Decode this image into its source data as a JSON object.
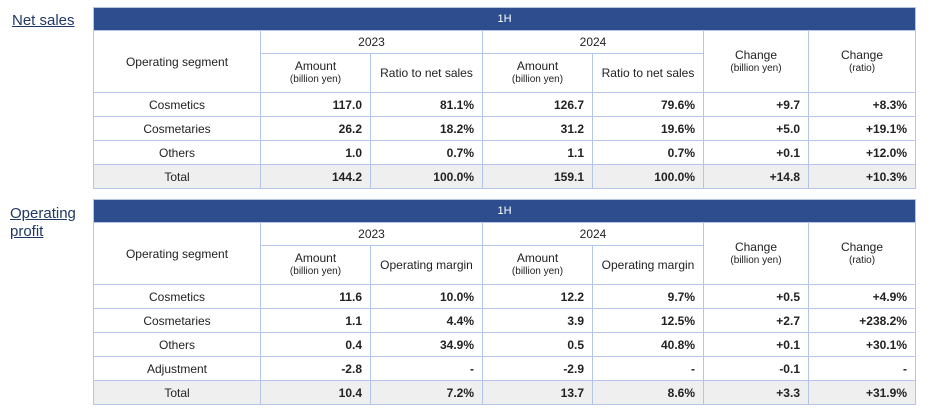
{
  "sections": [
    {
      "label": "Net sales",
      "period": "1H",
      "segment_header": "Operating segment",
      "years": [
        "2023",
        "2024"
      ],
      "subheaders": [
        {
          "text": "Amount",
          "unit": "(billion yen)"
        },
        {
          "text": "Ratio to net sales"
        },
        {
          "text": "Amount",
          "unit": "(billion yen)"
        },
        {
          "text": "Ratio to net sales"
        }
      ],
      "change_headers": [
        {
          "text": "Change",
          "unit": "(billion yen)"
        },
        {
          "text": "Change",
          "unit": "(ratio)"
        }
      ],
      "rows": [
        [
          "Cosmetics",
          "117.0",
          "81.1%",
          "126.7",
          "79.6%",
          "+9.7",
          "+8.3%"
        ],
        [
          "Cosmetaries",
          "26.2",
          "18.2%",
          "31.2",
          "19.6%",
          "+5.0",
          "+19.1%"
        ],
        [
          "Others",
          "1.0",
          "0.7%",
          "1.1",
          "0.7%",
          "+0.1",
          "+12.0%"
        ],
        [
          "Total",
          "144.2",
          "100.0%",
          "159.1",
          "100.0%",
          "+14.8",
          "+10.3%"
        ]
      ]
    },
    {
      "label": "Operating profit",
      "period": "1H",
      "segment_header": "Operating segment",
      "years": [
        "2023",
        "2024"
      ],
      "subheaders": [
        {
          "text": "Amount",
          "unit": "(billion yen)"
        },
        {
          "text": "Operating margin"
        },
        {
          "text": "Amount",
          "unit": "(billion yen)"
        },
        {
          "text": "Operating margin"
        }
      ],
      "change_headers": [
        {
          "text": "Change",
          "unit": "(billion yen)"
        },
        {
          "text": "Change",
          "unit": "(ratio)"
        }
      ],
      "rows": [
        [
          "Cosmetics",
          "11.6",
          "10.0%",
          "12.2",
          "9.7%",
          "+0.5",
          "+4.9%"
        ],
        [
          "Cosmetaries",
          "1.1",
          "4.4%",
          "3.9",
          "12.5%",
          "+2.7",
          "+238.2%"
        ],
        [
          "Others",
          "0.4",
          "34.9%",
          "0.5",
          "40.8%",
          "+0.1",
          "+30.1%"
        ],
        [
          "Adjustment",
          "-2.8",
          "-",
          "-2.9",
          "-",
          "-0.1",
          "-"
        ],
        [
          "Total",
          "10.4",
          "7.2%",
          "13.7",
          "8.6%",
          "+3.3",
          "+31.9%"
        ]
      ]
    }
  ]
}
